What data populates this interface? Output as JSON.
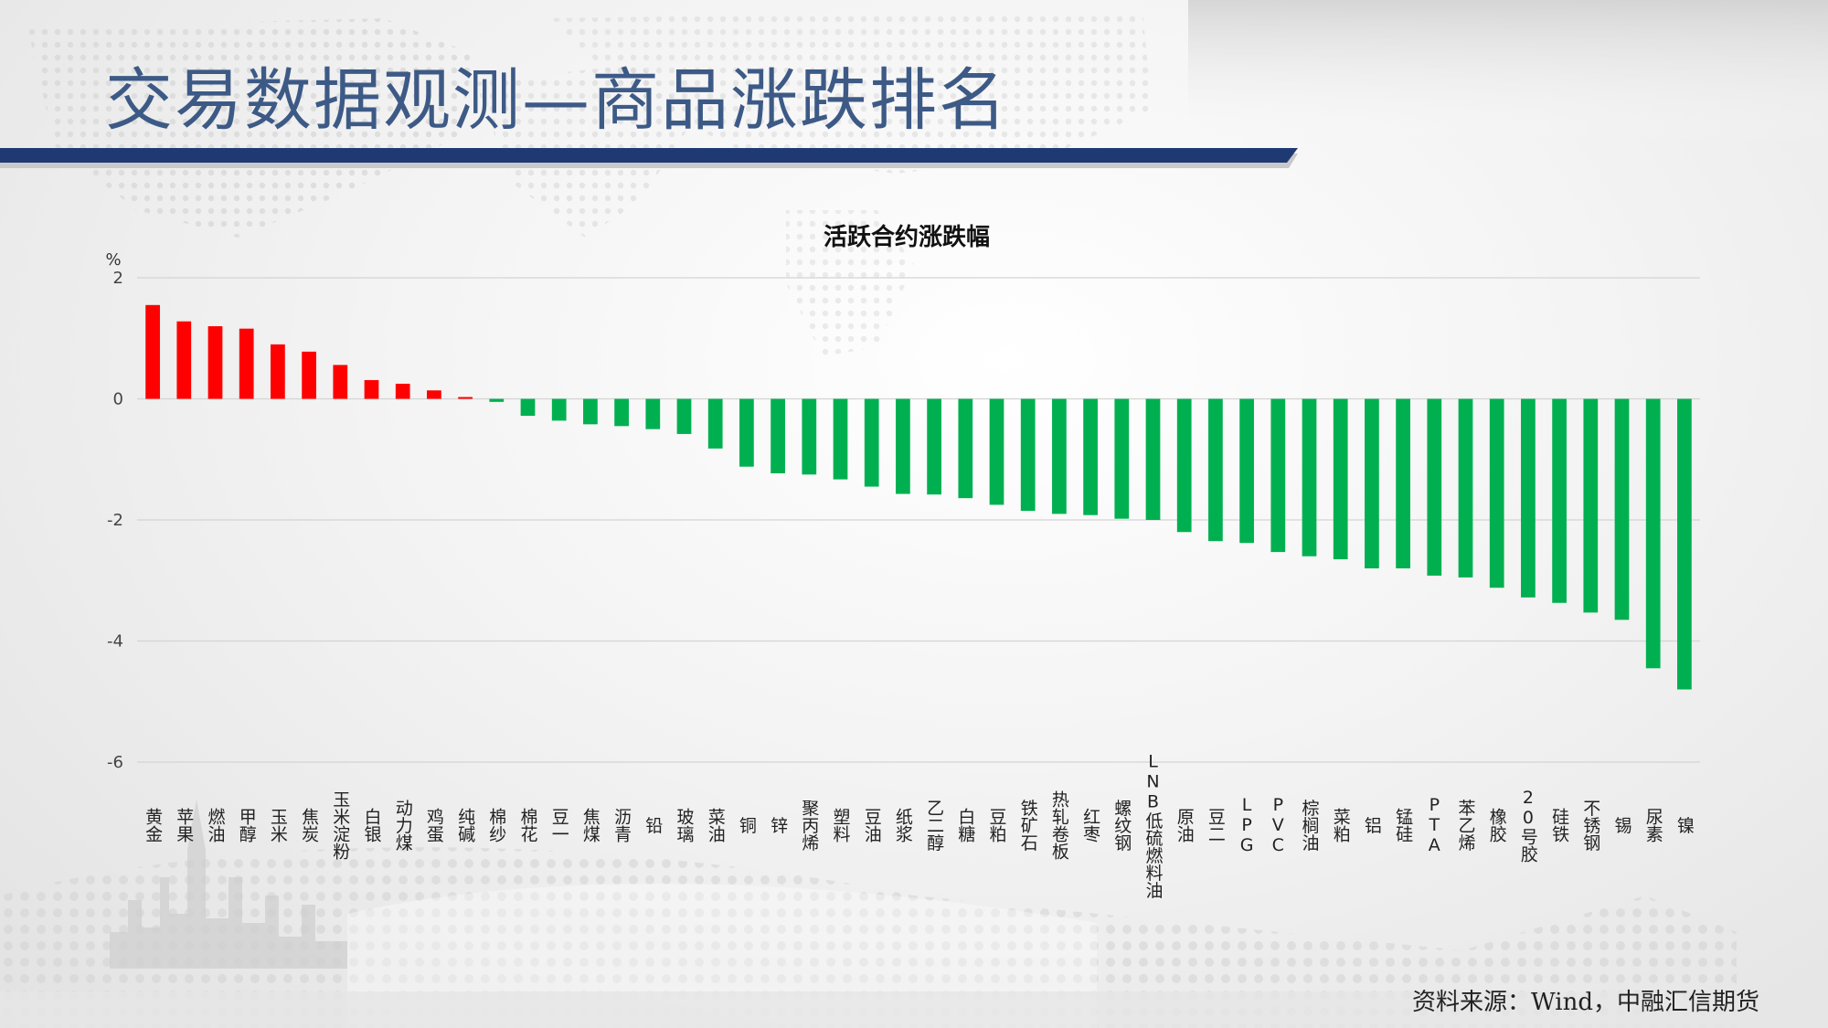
{
  "slide": {
    "title": "交易数据观测—商品涨跌排名",
    "source": "资料来源：Wind，中融汇信期货"
  },
  "colors": {
    "up": "#ff0000",
    "down": "#00b050",
    "title": "#3d5a86",
    "bar_accent": "#1f3a73"
  },
  "chart_data": {
    "type": "bar",
    "title": "活跃合约涨跌幅",
    "ylabel": "%",
    "ylim": [
      -6,
      2
    ],
    "yticks": [
      2,
      0,
      -2,
      -4,
      -6
    ],
    "grid": true,
    "categories": [
      "黄金",
      "苹果",
      "燃油",
      "甲醇",
      "玉米",
      "焦炭",
      "玉米淀粉",
      "白银",
      "动力煤",
      "鸡蛋",
      "纯碱",
      "棉纱",
      "棉花",
      "豆一",
      "焦煤",
      "沥青",
      "铅",
      "玻璃",
      "菜油",
      "铜",
      "锌",
      "聚丙烯",
      "塑料",
      "豆油",
      "纸浆",
      "乙二醇",
      "白糖",
      "豆粕",
      "铁矿石",
      "热轧卷板",
      "红枣",
      "螺纹钢",
      "LNB低硫燃料油",
      "原油",
      "豆二",
      "LPG",
      "PVC",
      "棕榈油",
      "菜粕",
      "铝",
      "锰硅",
      "PTA",
      "苯乙烯",
      "橡胶",
      "20号胶",
      "硅铁",
      "不锈钢",
      "锡",
      "尿素",
      "镍"
    ],
    "values": [
      1.55,
      1.28,
      1.2,
      1.16,
      0.9,
      0.78,
      0.56,
      0.31,
      0.25,
      0.14,
      0.03,
      -0.05,
      -0.28,
      -0.36,
      -0.42,
      -0.45,
      -0.5,
      -0.58,
      -0.82,
      -1.12,
      -1.23,
      -1.25,
      -1.33,
      -1.45,
      -1.57,
      -1.58,
      -1.64,
      -1.75,
      -1.85,
      -1.9,
      -1.92,
      -1.98,
      -2.0,
      -2.2,
      -2.35,
      -2.38,
      -2.53,
      -2.6,
      -2.65,
      -2.8,
      -2.8,
      -2.92,
      -2.95,
      -3.12,
      -3.28,
      -3.37,
      -3.53,
      -3.65,
      -4.45,
      -4.8
    ]
  }
}
